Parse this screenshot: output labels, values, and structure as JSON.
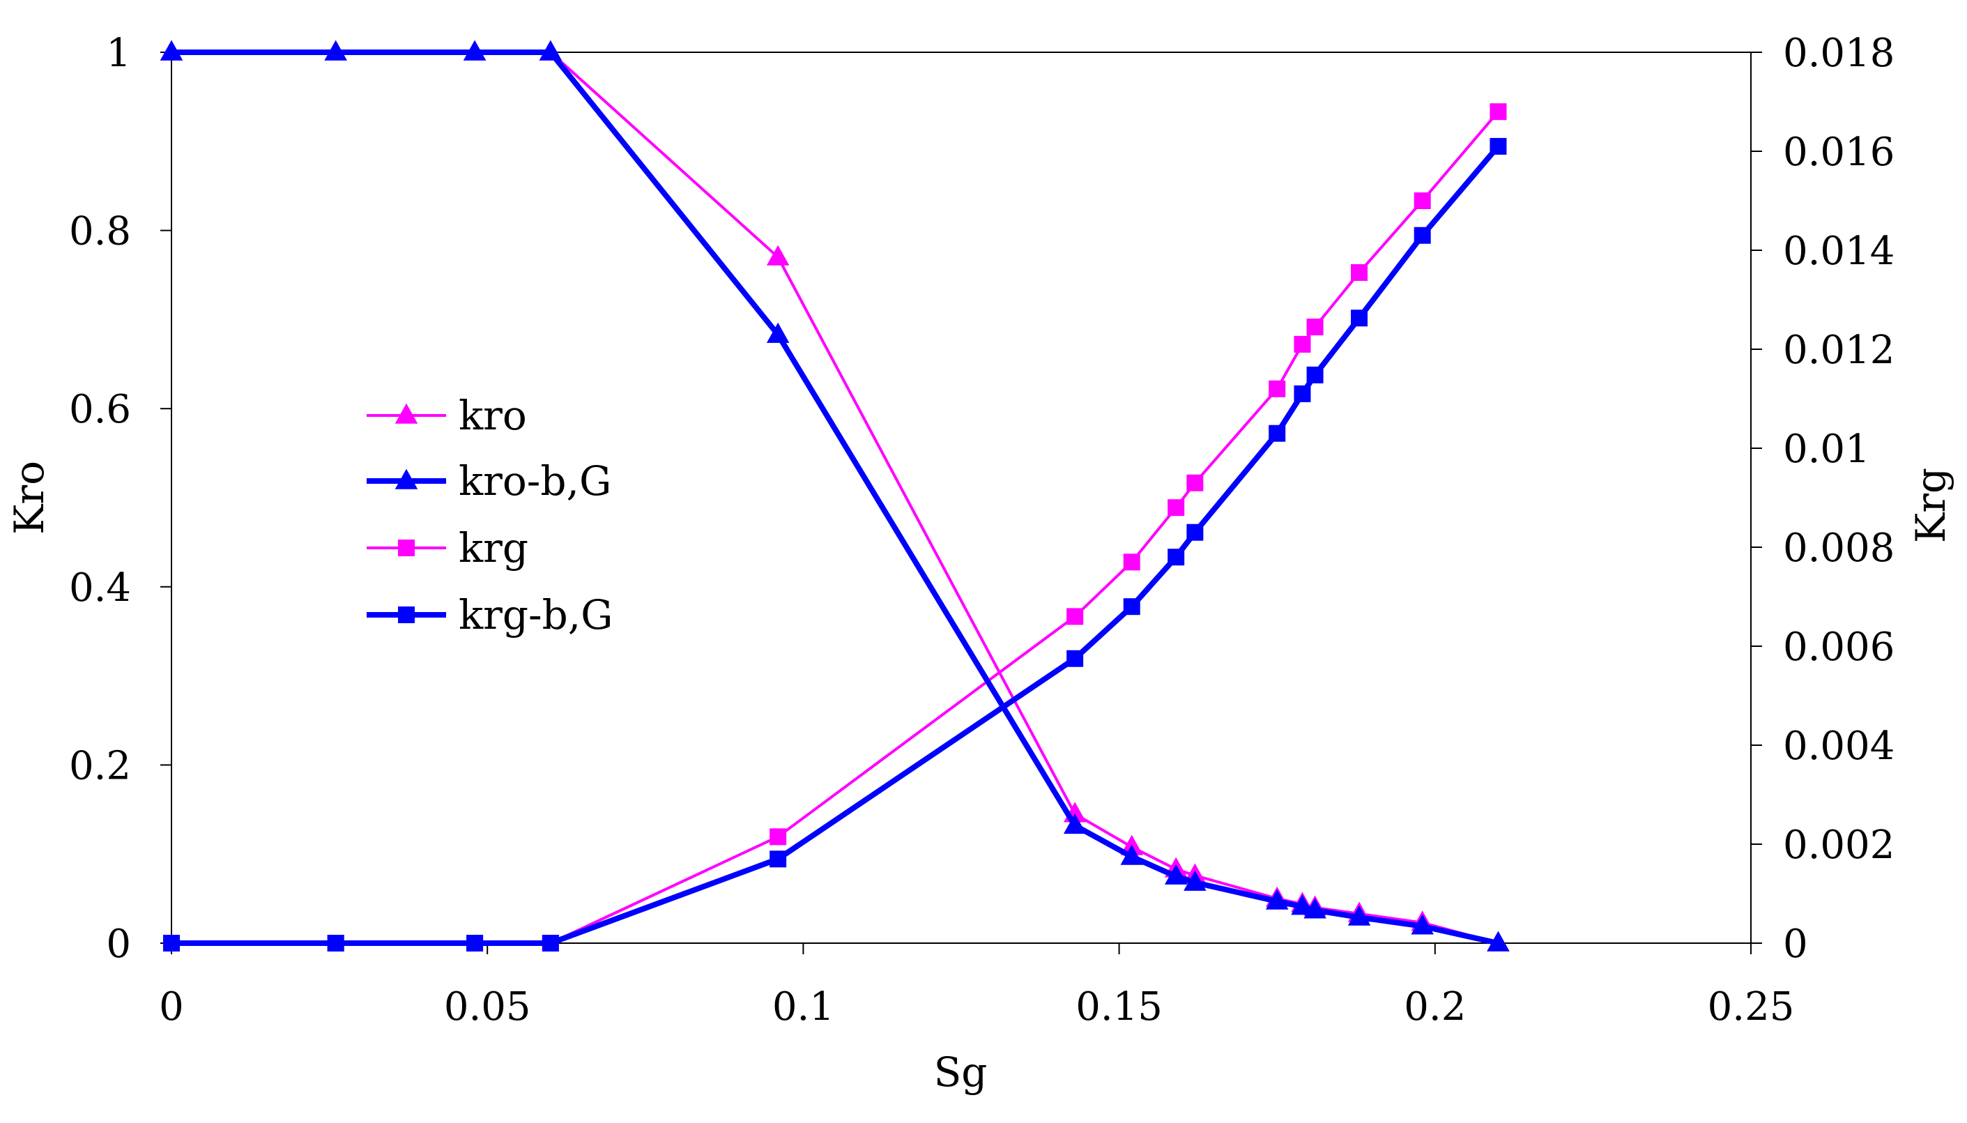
{
  "chart_data": {
    "type": "line",
    "title": "",
    "xlabel": "Sg",
    "ylabel": "Kro",
    "y2label": "Krg",
    "xlim": [
      0,
      0.25
    ],
    "ylim": [
      0,
      1
    ],
    "y2lim": [
      0,
      0.018
    ],
    "x_ticks": [
      "0",
      "0.05",
      "0.1",
      "0.15",
      "0.2",
      "0.25"
    ],
    "x_tick_values": [
      0,
      0.05,
      0.1,
      0.15,
      0.2,
      0.25
    ],
    "y_ticks": [
      "0",
      "0.2",
      "0.4",
      "0.6",
      "0.8",
      "1"
    ],
    "y_tick_values": [
      0,
      0.2,
      0.4,
      0.6,
      0.8,
      1
    ],
    "y2_ticks": [
      "0",
      "0.002",
      "0.004",
      "0.006",
      "0.008",
      "0.01",
      "0.012",
      "0.014",
      "0.016",
      "0.018"
    ],
    "y2_tick_values": [
      0,
      0.002,
      0.004,
      0.006,
      0.008,
      0.01,
      0.012,
      0.014,
      0.016,
      0.018
    ],
    "legend_position": "center-left",
    "series": [
      {
        "name": "kro",
        "axis": "left",
        "color": "#FF00FF",
        "marker": "triangle",
        "width": "thin",
        "x": [
          0,
          0.026,
          0.048,
          0.06,
          0.096,
          0.143,
          0.152,
          0.159,
          0.162,
          0.175,
          0.179,
          0.181,
          0.188,
          0.198,
          0.21
        ],
        "values": [
          1,
          1,
          1,
          1,
          0.77,
          0.145,
          0.108,
          0.083,
          0.076,
          0.05,
          0.044,
          0.04,
          0.033,
          0.023,
          0
        ]
      },
      {
        "name": "kro-b,G",
        "axis": "left",
        "color": "#0000FF",
        "marker": "triangle",
        "width": "thick",
        "x": [
          0,
          0.026,
          0.048,
          0.06,
          0.096,
          0.143,
          0.152,
          0.159,
          0.162,
          0.175,
          0.179,
          0.181,
          0.188,
          0.198,
          0.21
        ],
        "values": [
          1,
          1,
          1,
          1,
          0.683,
          0.132,
          0.097,
          0.075,
          0.068,
          0.047,
          0.041,
          0.037,
          0.029,
          0.019,
          0
        ]
      },
      {
        "name": "krg",
        "axis": "right",
        "color": "#FF00FF",
        "marker": "square",
        "width": "thin",
        "x": [
          0,
          0.026,
          0.048,
          0.06,
          0.096,
          0.143,
          0.152,
          0.159,
          0.162,
          0.175,
          0.179,
          0.181,
          0.188,
          0.198,
          0.21
        ],
        "values": [
          0,
          0,
          0,
          0,
          0.00215,
          0.0066,
          0.0077,
          0.0088,
          0.0093,
          0.0112,
          0.0121,
          0.01245,
          0.01355,
          0.015,
          0.0168
        ]
      },
      {
        "name": "krg-b,G",
        "axis": "right",
        "color": "#0000FF",
        "marker": "square",
        "width": "thick",
        "x": [
          0,
          0.026,
          0.048,
          0.06,
          0.096,
          0.143,
          0.152,
          0.159,
          0.162,
          0.175,
          0.179,
          0.181,
          0.188,
          0.198,
          0.21
        ],
        "values": [
          0,
          0,
          0,
          0,
          0.0017,
          0.00575,
          0.0068,
          0.0078,
          0.0083,
          0.0103,
          0.0111,
          0.01148,
          0.01263,
          0.0143,
          0.0161
        ]
      }
    ]
  }
}
